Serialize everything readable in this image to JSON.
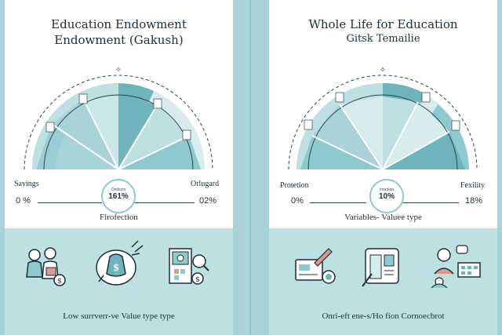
{
  "colors": {
    "bg": "#a9d3d8",
    "accent": "#8ec9cf",
    "dark": "#1d2f3a",
    "seg_dark": "#6fb3bd",
    "seg_light": "#bfe0e3"
  },
  "left": {
    "title_line1": "Education Endowment",
    "title_line2": "Endowment (Gakush)",
    "left_label": "Savings",
    "right_label": "Orlugard",
    "left_pct": "0 %",
    "right_pct": "02%",
    "center_small": "Ondsion",
    "center_value": "161%",
    "subtitle": "Firofection",
    "icons": [
      "family-savings-icon",
      "money-bag-speech-icon",
      "document-search-icon"
    ],
    "footer": "Low surrverr-ve Value type type"
  },
  "right": {
    "title_line1": "Whole Life for Education",
    "title_line2": "Gitsk Temailie",
    "left_label": "Protetion",
    "right_label": "Fexility",
    "left_pct": "0%",
    "right_pct": "18%",
    "center_small": "Inradion",
    "center_value": "10%",
    "subtitle": "Variables- Valuee type",
    "icons": [
      "card-pencil-icon",
      "clipboard-report-icon",
      "people-chat-icon"
    ],
    "footer": "Onri-eft ene-s/Ho fion Cornoecbrot"
  }
}
